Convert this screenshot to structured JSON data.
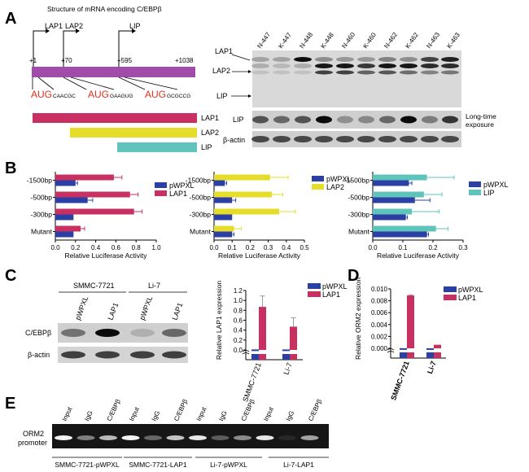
{
  "panels": {
    "A": {
      "letter": "A",
      "title": "Structure of mRNA encoding C/EBPβ",
      "start_labels": [
        "LAP1",
        "LAP2",
        "LIP"
      ],
      "positions": [
        "+1",
        "+70",
        "+595",
        "+1038"
      ],
      "aug_contexts": [
        {
          "aug": "AUG",
          "context": "CAACGC"
        },
        {
          "aug": "AUG",
          "context": "GAAGUG"
        },
        {
          "aug": "AUG",
          "context": "GCGCCG"
        }
      ],
      "isoforms": [
        {
          "label": "LAP1",
          "color": "#c83062"
        },
        {
          "label": "LAP2",
          "color": "#e6dc2a"
        },
        {
          "label": "LIP",
          "color": "#5fc4bb"
        }
      ],
      "blot_lanes": [
        "N-447",
        "K-447",
        "N-448",
        "K-448",
        "N-460",
        "K-460",
        "N-462",
        "K-462",
        "N-463",
        "K-463"
      ],
      "blot_left_labels": [
        "LAP1",
        "LAP2",
        "LIP",
        "LIP",
        "β-actin"
      ],
      "blot_right_label_lines": [
        "Long-time",
        "exposure"
      ]
    },
    "B": {
      "letter": "B",
      "legend_control": "pWPXL",
      "control_color": "#2c3fa5"
    },
    "C": {
      "letter": "C",
      "cell_lines": [
        "SMMC-7721",
        "Li-7"
      ],
      "lanes": [
        "pWPXL",
        "LAP1",
        "pWPXL",
        "LAP1"
      ],
      "blot_labels": [
        "C/EBPβ",
        "β-actin"
      ]
    },
    "D": {
      "letter": "D"
    },
    "E": {
      "letter": "E",
      "lanes": [
        "Input",
        "IgG",
        "C/EBPβ",
        "Input",
        "IgG",
        "C/EBPβ",
        "Input",
        "IgG",
        "C/EBPβ",
        "Input",
        "IgG",
        "C/EBPβ"
      ],
      "row_label_lines": [
        "ORM2",
        "promoter"
      ],
      "groups": [
        "SMMC-7721-pWPXL",
        "SMMC-7721-LAP1",
        "Li-7-pWPXL",
        "Li-7-LAP1"
      ]
    }
  },
  "chart_data": [
    {
      "panel": "B",
      "type": "bar",
      "orientation": "horizontal",
      "categories": [
        "-1500bp",
        "-500bp",
        "-300bp",
        "Mutant"
      ],
      "series": [
        {
          "name": "pWPXL",
          "color": "#2c3fa5",
          "values": [
            0.2,
            0.32,
            0.18,
            0.18
          ],
          "errors": [
            0.02,
            0.05,
            0.0,
            0.0
          ]
        },
        {
          "name": "LAP1",
          "color": "#c83062",
          "values": [
            0.58,
            0.74,
            0.78,
            0.25
          ],
          "errors": [
            0.08,
            0.08,
            0.08,
            0.04
          ]
        }
      ],
      "xlabel": "Relative Luciferase Activity",
      "xlim": [
        0,
        1.0
      ],
      "xticks": [
        0.0,
        0.2,
        0.4,
        0.6,
        0.8,
        1.0
      ]
    },
    {
      "panel": "B",
      "type": "bar",
      "orientation": "horizontal",
      "categories": [
        "-1500bp",
        "-500bp",
        "-300bp",
        "Mutant"
      ],
      "series": [
        {
          "name": "pWPXL",
          "color": "#2c3fa5",
          "values": [
            0.06,
            0.1,
            0.1,
            0.1
          ],
          "errors": [
            0.01,
            0.02,
            0.0,
            0.01
          ]
        },
        {
          "name": "LAP2",
          "color": "#e6dc2a",
          "values": [
            0.31,
            0.32,
            0.36,
            0.11
          ],
          "errors": [
            0.1,
            0.06,
            0.09,
            0.04
          ]
        }
      ],
      "xlabel": "Relative Luciferase Activity",
      "xlim": [
        0,
        0.5
      ],
      "xticks": [
        0.0,
        0.1,
        0.2,
        0.3,
        0.4,
        0.5
      ]
    },
    {
      "panel": "B",
      "type": "bar",
      "orientation": "horizontal",
      "categories": [
        "-1500bp",
        "-500bp",
        "-300bp",
        "Mutant"
      ],
      "series": [
        {
          "name": "pWPXL",
          "color": "#2c3fa5",
          "values": [
            0.12,
            0.14,
            0.11,
            0.18
          ],
          "errors": [
            0.01,
            0.05,
            0.005,
            0.005
          ]
        },
        {
          "name": "LIP",
          "color": "#5fc4bb",
          "values": [
            0.18,
            0.17,
            0.13,
            0.21
          ],
          "errors": [
            0.09,
            0.06,
            0.09,
            0.04
          ]
        }
      ],
      "xlabel": "Relative Luciferase Activity",
      "xlim": [
        0,
        0.3
      ],
      "xticks": [
        0.0,
        0.1,
        0.2,
        0.3
      ]
    },
    {
      "panel": "C",
      "type": "bar",
      "orientation": "vertical",
      "categories": [
        "SMMC-7721",
        "Li-7"
      ],
      "series": [
        {
          "name": "pWPXL",
          "color": "#2c3fa5",
          "values": [
            0.01,
            0.01
          ],
          "errors": [
            0,
            0
          ]
        },
        {
          "name": "LAP1",
          "color": "#c83062",
          "values": [
            0.87,
            0.47
          ],
          "errors": [
            0.22,
            0.18
          ]
        }
      ],
      "ylabel": "Relative LAP1 expression",
      "ylim": [
        0,
        1.2
      ],
      "yticks": [
        0.0,
        0.2,
        0.4,
        0.6,
        0.8,
        1.0,
        1.2
      ],
      "axis_break": true
    },
    {
      "panel": "D",
      "type": "bar",
      "orientation": "vertical",
      "categories": [
        "SMMC-7721",
        "Li-7"
      ],
      "series": [
        {
          "name": "pWPXL",
          "color": "#2c3fa5",
          "values": [
            2e-05,
            1e-05
          ],
          "errors": [
            0,
            0
          ]
        },
        {
          "name": "LAP1",
          "color": "#c83062",
          "values": [
            0.0089,
            0.0006
          ],
          "errors": [
            0.0001,
            0.0
          ]
        }
      ],
      "ylabel": "Relative ORM2 expression",
      "ylim": [
        0,
        0.01
      ],
      "yticks": [
        0.0,
        0.002,
        0.004,
        0.006,
        0.008,
        0.01
      ],
      "ytick_labels": [
        "0.000",
        "0.002",
        "0.004",
        "0.006",
        "0.008",
        "0.010"
      ],
      "axis_break": true
    }
  ]
}
